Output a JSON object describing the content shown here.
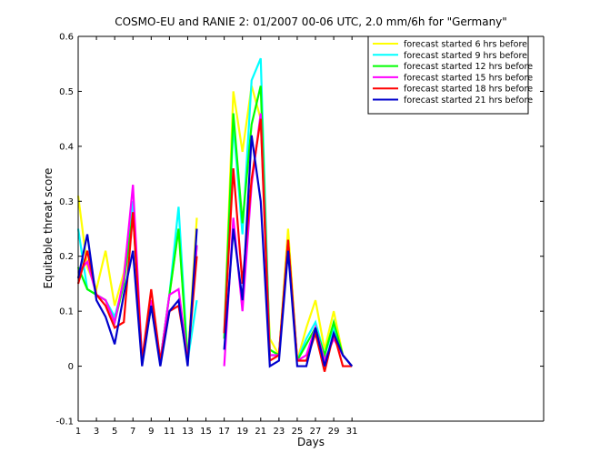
{
  "chart_data": {
    "type": "line",
    "title": "COSMO-EU and RANIE 2: 01/2007 00-06 UTC, 2.0 mm/6h for \"Germany\"",
    "xlabel": "Days",
    "ylabel": "Equitable threat score",
    "xlim": [
      1,
      52
    ],
    "ylim": [
      -0.1,
      0.6
    ],
    "xticks": [
      1,
      3,
      5,
      7,
      9,
      11,
      13,
      15,
      17,
      19,
      21,
      23,
      25,
      27,
      29,
      31
    ],
    "yticks": [
      -0.1,
      0,
      0.1,
      0.2,
      0.3,
      0.4,
      0.5,
      0.6
    ],
    "ytick_labels": [
      "-0.1",
      "0",
      "0.1",
      "0.2",
      "0.3",
      "0.4",
      "0.5",
      "0.6"
    ],
    "grid": false,
    "legend_position": "top-right",
    "x": [
      1,
      2,
      3,
      4,
      5,
      6,
      7,
      8,
      9,
      10,
      11,
      12,
      13,
      14,
      15,
      16,
      17,
      18,
      19,
      20,
      21,
      22,
      23,
      24,
      25,
      26,
      27,
      28,
      29,
      30,
      31
    ],
    "series": [
      {
        "name": "forecast started 6 hrs before",
        "color": "#ffff00",
        "values": [
          0.31,
          0.18,
          0.14,
          0.21,
          0.11,
          0.17,
          0.3,
          0.01,
          0.11,
          0.01,
          0.13,
          0.25,
          0.01,
          0.27,
          null,
          null,
          0.06,
          0.5,
          0.39,
          0.51,
          0.45,
          0.05,
          0.02,
          0.25,
          0.01,
          0.07,
          0.12,
          0.03,
          0.1,
          0.02,
          0.0
        ]
      },
      {
        "name": "forecast started 9 hrs before",
        "color": "#00ffff",
        "values": [
          0.25,
          0.14,
          0.13,
          0.12,
          0.09,
          0.15,
          0.3,
          0.01,
          0.11,
          0.01,
          0.13,
          0.29,
          0.01,
          0.12,
          null,
          null,
          0.06,
          0.44,
          0.24,
          0.52,
          0.56,
          0.02,
          0.02,
          0.22,
          0.01,
          0.05,
          0.08,
          0.02,
          0.07,
          0.02,
          0.0
        ]
      },
      {
        "name": "forecast started 12 hrs before",
        "color": "#00ff00",
        "values": [
          0.18,
          0.14,
          0.13,
          0.12,
          0.08,
          0.15,
          0.28,
          0.01,
          0.11,
          0.01,
          0.13,
          0.25,
          0.01,
          0.22,
          null,
          null,
          0.05,
          0.46,
          0.26,
          0.44,
          0.51,
          0.03,
          0.02,
          0.23,
          0.01,
          0.04,
          0.07,
          0.02,
          0.08,
          0.02,
          0.0
        ]
      },
      {
        "name": "forecast started 15 hrs before",
        "color": "#ff00ff",
        "values": [
          0.17,
          0.19,
          0.13,
          0.12,
          0.08,
          0.16,
          0.33,
          0.01,
          0.12,
          0.01,
          0.13,
          0.14,
          0.01,
          0.22,
          null,
          null,
          0.0,
          0.27,
          0.1,
          0.33,
          0.46,
          0.02,
          0.02,
          0.22,
          0.01,
          0.02,
          0.07,
          0.01,
          0.05,
          0.02,
          0.0
        ]
      },
      {
        "name": "forecast started 18 hrs before",
        "color": "#ff0000",
        "values": [
          0.15,
          0.21,
          0.13,
          0.11,
          0.07,
          0.08,
          0.28,
          0.01,
          0.14,
          0.01,
          0.1,
          0.11,
          0.01,
          0.2,
          null,
          null,
          0.06,
          0.36,
          0.15,
          0.34,
          0.45,
          0.01,
          0.02,
          0.23,
          0.01,
          0.01,
          0.06,
          -0.01,
          0.06,
          0.0,
          0.0
        ]
      },
      {
        "name": "forecast started 21 hrs before",
        "color": "#0000cc",
        "values": [
          0.16,
          0.24,
          0.12,
          0.09,
          0.04,
          0.13,
          0.21,
          0.0,
          0.11,
          0.0,
          0.1,
          0.12,
          0.0,
          0.25,
          null,
          null,
          0.03,
          0.25,
          0.12,
          0.42,
          0.3,
          0.0,
          0.01,
          0.21,
          0.0,
          0.0,
          0.07,
          0.0,
          0.06,
          0.02,
          0.0
        ]
      }
    ]
  }
}
